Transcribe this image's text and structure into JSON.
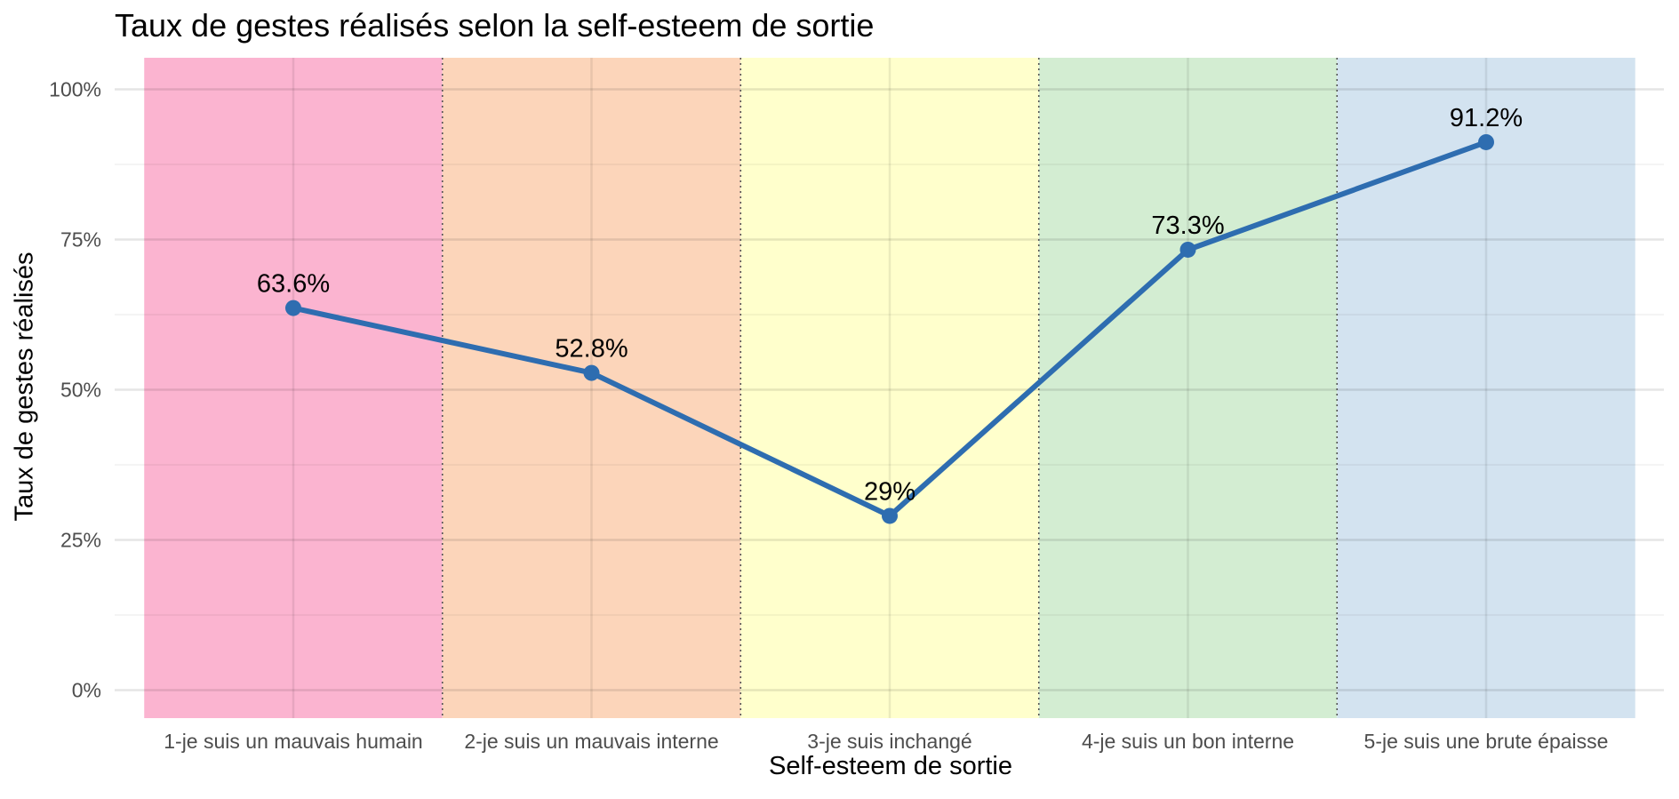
{
  "chart_data": {
    "type": "line",
    "title": "Taux de gestes réalisés selon la self-esteem de sortie",
    "xlabel": "Self-esteem de sortie",
    "ylabel": "Taux de gestes réalisés",
    "categories": [
      "1-je suis un mauvais humain",
      "2-je suis un mauvais interne",
      "3-je suis inchangé",
      "4-je suis un bon interne",
      "5-je suis une brute épaisse"
    ],
    "values": [
      63.6,
      52.8,
      29.0,
      73.3,
      91.2
    ],
    "data_labels": [
      "63.6%",
      "52.8%",
      "29%",
      "73.3%",
      "91.2%"
    ],
    "ylim": [
      0,
      100
    ],
    "y_ticks": [
      0,
      25,
      50,
      75,
      100
    ],
    "y_tick_labels": [
      "0%",
      "25%",
      "50%",
      "75%",
      "100%"
    ],
    "grid": true,
    "line_color": "#2E6DB0",
    "band_colors": [
      "#FBB4D0",
      "#FCD5BA",
      "#FFFFCC",
      "#D3EDD2",
      "#D3E3F0"
    ]
  }
}
